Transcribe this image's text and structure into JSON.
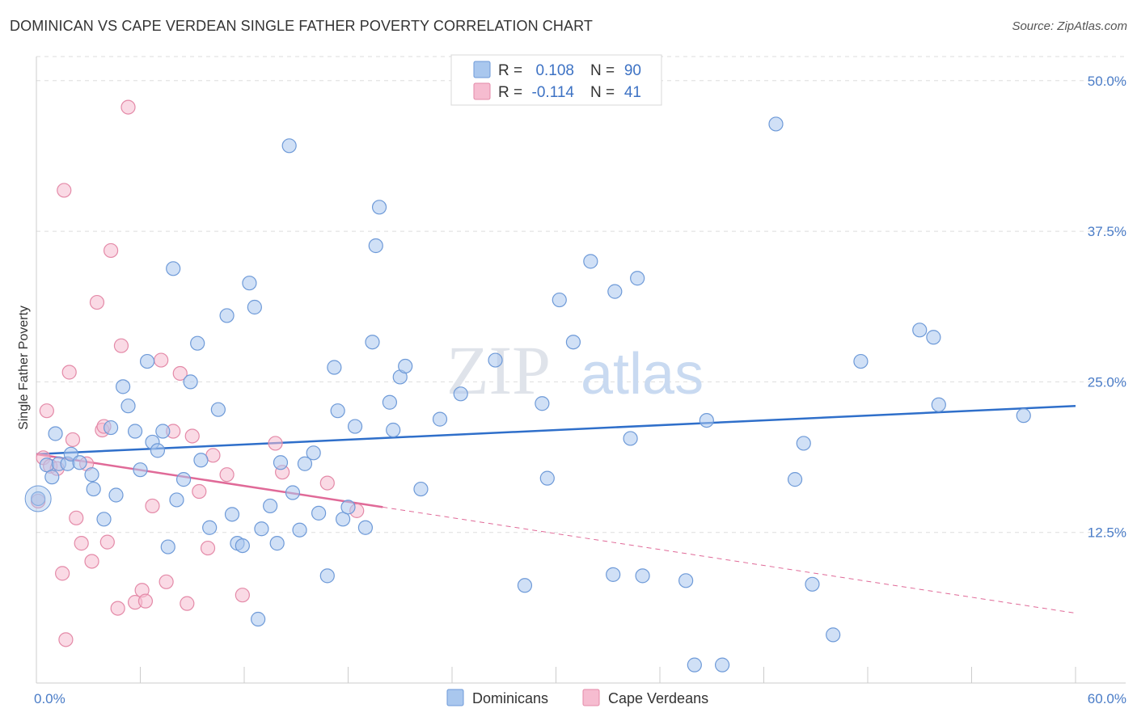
{
  "title": "DOMINICAN VS CAPE VERDEAN SINGLE FATHER POVERTY CORRELATION CHART",
  "source": "Source: ZipAtlas.com",
  "watermark": {
    "zip": "ZIP",
    "atlas": "atlas"
  },
  "colors": {
    "dominican_fill": "#a9c7ee",
    "dominican_stroke": "#6e9ad8",
    "dominican_line": "#2f6fca",
    "capeverdean_fill": "#f6bcd0",
    "capeverdean_stroke": "#e48aa8",
    "capeverdean_line": "#e06a98",
    "grid": "#dddddd",
    "axis_text": "#4a7cc7"
  },
  "legend": {
    "rows": [
      {
        "r_label": "R =",
        "r_value": "0.108",
        "n_label": "N =",
        "n_value": "90"
      },
      {
        "r_label": "R =",
        "r_value": "-0.114",
        "n_label": "N =",
        "n_value": "41"
      }
    ]
  },
  "bottom_legend": [
    "Dominicans",
    "Cape Verdeans"
  ],
  "chart_data": {
    "type": "scatter",
    "ylabel": "Single Father Poverty",
    "xlim": [
      0,
      60
    ],
    "ylim": [
      0,
      52
    ],
    "x_tick_labels": [
      "0.0%",
      "60.0%"
    ],
    "y_ticks": [
      12.5,
      25.0,
      37.5,
      50.0
    ],
    "y_tick_labels": [
      "12.5%",
      "25.0%",
      "37.5%",
      "50.0%"
    ],
    "grid": true,
    "series": [
      {
        "name": "Dominicans",
        "trend": {
          "x": [
            0,
            60
          ],
          "y": [
            19.0,
            23.0
          ],
          "solid_until": 60
        },
        "points": [
          [
            0.1,
            15.3
          ],
          [
            0.6,
            18.1
          ],
          [
            0.9,
            17.1
          ],
          [
            1.1,
            20.7
          ],
          [
            1.3,
            18.2
          ],
          [
            1.8,
            18.2
          ],
          [
            2.0,
            19.0
          ],
          [
            2.5,
            18.3
          ],
          [
            3.2,
            17.3
          ],
          [
            3.3,
            16.1
          ],
          [
            3.9,
            13.6
          ],
          [
            4.3,
            21.2
          ],
          [
            4.6,
            15.6
          ],
          [
            5.0,
            24.6
          ],
          [
            5.3,
            23.0
          ],
          [
            5.7,
            20.9
          ],
          [
            6.0,
            17.7
          ],
          [
            6.4,
            26.7
          ],
          [
            6.7,
            20.0
          ],
          [
            7.0,
            19.3
          ],
          [
            7.3,
            20.9
          ],
          [
            7.6,
            11.3
          ],
          [
            7.9,
            34.4
          ],
          [
            8.1,
            15.2
          ],
          [
            8.5,
            16.9
          ],
          [
            8.9,
            25.0
          ],
          [
            9.3,
            28.2
          ],
          [
            9.5,
            18.5
          ],
          [
            10.0,
            12.9
          ],
          [
            10.5,
            22.7
          ],
          [
            11.0,
            30.5
          ],
          [
            11.3,
            14.0
          ],
          [
            11.6,
            11.6
          ],
          [
            11.9,
            11.4
          ],
          [
            12.3,
            33.2
          ],
          [
            12.6,
            31.2
          ],
          [
            12.8,
            5.3
          ],
          [
            13.0,
            12.8
          ],
          [
            13.5,
            14.7
          ],
          [
            13.9,
            11.6
          ],
          [
            14.1,
            18.3
          ],
          [
            14.6,
            44.6
          ],
          [
            14.8,
            15.8
          ],
          [
            15.2,
            12.7
          ],
          [
            15.5,
            18.2
          ],
          [
            16.0,
            19.1
          ],
          [
            16.3,
            14.1
          ],
          [
            16.8,
            8.9
          ],
          [
            17.2,
            26.2
          ],
          [
            17.4,
            22.6
          ],
          [
            17.7,
            13.6
          ],
          [
            18.0,
            14.6
          ],
          [
            18.4,
            21.3
          ],
          [
            19.0,
            12.9
          ],
          [
            19.4,
            28.3
          ],
          [
            19.6,
            36.3
          ],
          [
            19.8,
            39.5
          ],
          [
            20.4,
            23.3
          ],
          [
            20.6,
            21.0
          ],
          [
            21.0,
            25.4
          ],
          [
            21.3,
            26.3
          ],
          [
            22.2,
            16.1
          ],
          [
            23.3,
            21.9
          ],
          [
            24.5,
            24.0
          ],
          [
            26.5,
            26.8
          ],
          [
            28.2,
            8.1
          ],
          [
            29.2,
            23.2
          ],
          [
            29.5,
            17.0
          ],
          [
            30.2,
            31.8
          ],
          [
            31.0,
            28.3
          ],
          [
            32.0,
            35.0
          ],
          [
            33.3,
            9.0
          ],
          [
            33.4,
            32.5
          ],
          [
            34.3,
            20.3
          ],
          [
            34.7,
            33.6
          ],
          [
            35.0,
            8.9
          ],
          [
            37.5,
            8.5
          ],
          [
            38.0,
            1.5
          ],
          [
            38.7,
            21.8
          ],
          [
            39.6,
            1.5
          ],
          [
            42.7,
            46.4
          ],
          [
            43.8,
            16.9
          ],
          [
            44.3,
            19.9
          ],
          [
            44.8,
            8.2
          ],
          [
            47.6,
            26.7
          ],
          [
            51.0,
            29.3
          ],
          [
            51.8,
            28.7
          ],
          [
            52.1,
            23.1
          ],
          [
            57.0,
            22.2
          ],
          [
            46.0,
            4.0
          ]
        ]
      },
      {
        "name": "Cape Verdeans",
        "trend": {
          "x": [
            0,
            60
          ],
          "y": [
            19.0,
            5.8
          ],
          "solid_until": 20
        },
        "points": [
          [
            0.1,
            15.1
          ],
          [
            0.4,
            18.7
          ],
          [
            0.6,
            22.6
          ],
          [
            0.8,
            18.0
          ],
          [
            1.2,
            17.8
          ],
          [
            1.5,
            9.1
          ],
          [
            1.7,
            3.6
          ],
          [
            1.6,
            40.9
          ],
          [
            1.9,
            25.8
          ],
          [
            2.1,
            20.2
          ],
          [
            2.3,
            13.7
          ],
          [
            2.6,
            11.6
          ],
          [
            2.9,
            18.2
          ],
          [
            3.2,
            10.1
          ],
          [
            3.5,
            31.6
          ],
          [
            3.8,
            21.0
          ],
          [
            3.9,
            21.3
          ],
          [
            4.1,
            11.7
          ],
          [
            4.3,
            35.9
          ],
          [
            4.7,
            6.2
          ],
          [
            4.9,
            28.0
          ],
          [
            5.3,
            47.8
          ],
          [
            5.7,
            6.7
          ],
          [
            6.1,
            7.7
          ],
          [
            6.3,
            6.8
          ],
          [
            6.7,
            14.7
          ],
          [
            7.2,
            26.8
          ],
          [
            7.5,
            8.4
          ],
          [
            7.9,
            20.9
          ],
          [
            8.3,
            25.7
          ],
          [
            8.7,
            6.6
          ],
          [
            9.0,
            20.5
          ],
          [
            9.4,
            15.9
          ],
          [
            9.9,
            11.2
          ],
          [
            10.2,
            18.9
          ],
          [
            11.0,
            17.3
          ],
          [
            11.9,
            7.3
          ],
          [
            13.8,
            19.9
          ],
          [
            14.2,
            17.5
          ],
          [
            16.8,
            16.6
          ],
          [
            18.5,
            14.3
          ]
        ]
      }
    ]
  }
}
